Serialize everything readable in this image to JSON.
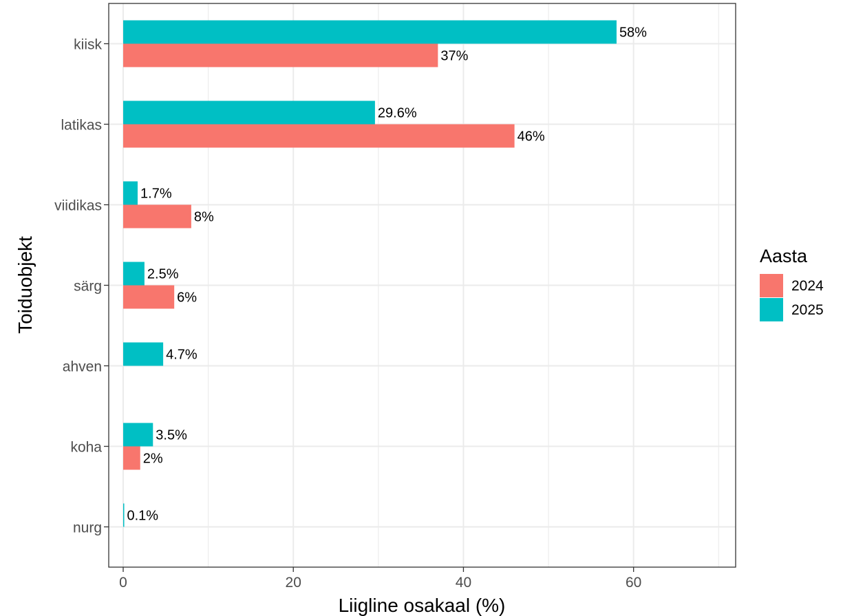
{
  "chart_data": {
    "type": "bar",
    "orientation": "horizontal",
    "xlabel": "Liigline osakaal (%)",
    "ylabel": "Toiduobjekt",
    "xlim": [
      -1.7,
      72
    ],
    "x_ticks": [
      0,
      20,
      40,
      60
    ],
    "grid": true,
    "legend_position": "right",
    "legend_title": "Aasta",
    "categories": [
      "kiisk",
      "latikas",
      "viidikas",
      "särg",
      "ahven",
      "koha",
      "nurg"
    ],
    "series": [
      {
        "name": "2024",
        "color": "#F8766D",
        "values": [
          37,
          46,
          8,
          6,
          null,
          2,
          null
        ],
        "labels": [
          "37%",
          "46%",
          "8%",
          "6%",
          null,
          "2%",
          null
        ]
      },
      {
        "name": "2025",
        "color": "#00BFC4",
        "values": [
          58,
          29.6,
          1.7,
          2.5,
          4.7,
          3.5,
          0.1
        ],
        "labels": [
          "58%",
          "29.6%",
          "1.7%",
          "2.5%",
          "4.7%",
          "3.5%",
          "0.1%"
        ]
      }
    ]
  }
}
